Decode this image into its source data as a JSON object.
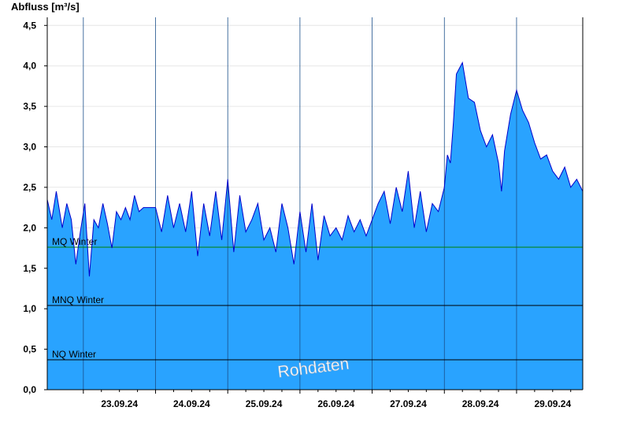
{
  "chart_data": {
    "type": "area",
    "title": "Abfluss [m³/s]",
    "xlabel": "",
    "ylabel": "Abfluss [m³/s]",
    "ylim": [
      0,
      4.6
    ],
    "yticks": [
      {
        "v": 0,
        "label": "0,0"
      },
      {
        "v": 0.5,
        "label": "0,5"
      },
      {
        "v": 1,
        "label": "1,0"
      },
      {
        "v": 1.5,
        "label": "1,5"
      },
      {
        "v": 2,
        "label": "2,0"
      },
      {
        "v": 2.5,
        "label": "2,5"
      },
      {
        "v": 3,
        "label": "3,0"
      },
      {
        "v": 3.5,
        "label": "3,5"
      },
      {
        "v": 4,
        "label": "4,0"
      },
      {
        "v": 4.5,
        "label": "4,5"
      }
    ],
    "xlim": [
      "2024-09-22T12:00",
      "2024-09-29T22:00"
    ],
    "day_ticks": [
      {
        "date": "2024-09-23T00:00",
        "label": "23.09.24"
      },
      {
        "date": "2024-09-24T00:00",
        "label": "24.09.24"
      },
      {
        "date": "2024-09-25T00:00",
        "label": "25.09.24"
      },
      {
        "date": "2024-09-26T00:00",
        "label": "26.09.24"
      },
      {
        "date": "2024-09-27T00:00",
        "label": "27.09.24"
      },
      {
        "date": "2024-09-28T00:00",
        "label": "28.09.24"
      },
      {
        "date": "2024-09-29T00:00",
        "label": "29.09.24"
      }
    ],
    "grid": true,
    "colors": {
      "fill": "#29a3ff",
      "line": "#0000cc",
      "mq": "#008000",
      "ref": "#000000"
    },
    "reference_lines": [
      {
        "label": "MQ Winter",
        "value": 1.76,
        "color": "#008000"
      },
      {
        "label": "MNQ Winter",
        "value": 1.04,
        "color": "#000000"
      },
      {
        "label": "NQ Winter",
        "value": 0.37,
        "color": "#000000"
      }
    ],
    "watermark": "Rohdaten",
    "series": [
      {
        "x": [
          "2024-09-22T12:00",
          "2024-09-22T13:30",
          "2024-09-22T15:00",
          "2024-09-22T17:00",
          "2024-09-22T18:30",
          "2024-09-22T20:00",
          "2024-09-22T21:30",
          "2024-09-22T23:00",
          "2024-09-23T00:30",
          "2024-09-23T02:00",
          "2024-09-23T03:30",
          "2024-09-23T05:00",
          "2024-09-23T06:30",
          "2024-09-23T08:00",
          "2024-09-23T09:30",
          "2024-09-23T11:00",
          "2024-09-23T12:30",
          "2024-09-23T14:00",
          "2024-09-23T15:30",
          "2024-09-23T17:00",
          "2024-09-23T18:30",
          "2024-09-23T20:00",
          "2024-09-23T22:00",
          "2024-09-24T00:00",
          "2024-09-24T02:00",
          "2024-09-24T04:00",
          "2024-09-24T06:00",
          "2024-09-24T08:00",
          "2024-09-24T10:00",
          "2024-09-24T12:00",
          "2024-09-24T14:00",
          "2024-09-24T16:00",
          "2024-09-24T18:00",
          "2024-09-24T20:00",
          "2024-09-24T22:00",
          "2024-09-25T00:00",
          "2024-09-25T02:00",
          "2024-09-25T04:00",
          "2024-09-25T06:00",
          "2024-09-25T08:00",
          "2024-09-25T10:00",
          "2024-09-25T12:00",
          "2024-09-25T14:00",
          "2024-09-25T16:00",
          "2024-09-25T18:00",
          "2024-09-25T20:00",
          "2024-09-25T22:00",
          "2024-09-26T00:00",
          "2024-09-26T02:00",
          "2024-09-26T04:00",
          "2024-09-26T06:00",
          "2024-09-26T08:00",
          "2024-09-26T10:00",
          "2024-09-26T12:00",
          "2024-09-26T14:00",
          "2024-09-26T16:00",
          "2024-09-26T18:00",
          "2024-09-26T20:00",
          "2024-09-26T22:00",
          "2024-09-27T00:00",
          "2024-09-27T02:00",
          "2024-09-27T04:00",
          "2024-09-27T06:00",
          "2024-09-27T08:00",
          "2024-09-27T10:00",
          "2024-09-27T12:00",
          "2024-09-27T14:00",
          "2024-09-27T16:00",
          "2024-09-27T18:00",
          "2024-09-27T20:00",
          "2024-09-27T22:00",
          "2024-09-28T00:00",
          "2024-09-28T01:00",
          "2024-09-28T02:00",
          "2024-09-28T03:00",
          "2024-09-28T04:00",
          "2024-09-28T06:00",
          "2024-09-28T08:00",
          "2024-09-28T10:00",
          "2024-09-28T12:00",
          "2024-09-28T13:00",
          "2024-09-28T14:00",
          "2024-09-28T16:00",
          "2024-09-28T18:00",
          "2024-09-28T19:00",
          "2024-09-28T20:00",
          "2024-09-28T22:00",
          "2024-09-29T00:00",
          "2024-09-29T02:00",
          "2024-09-29T04:00",
          "2024-09-29T06:00",
          "2024-09-29T08:00",
          "2024-09-29T10:00",
          "2024-09-29T12:00",
          "2024-09-29T14:00",
          "2024-09-29T16:00",
          "2024-09-29T18:00",
          "2024-09-29T20:00",
          "2024-09-29T22:00"
        ],
        "y": [
          2.35,
          2.1,
          2.45,
          2.0,
          2.3,
          2.1,
          1.55,
          1.95,
          2.3,
          1.4,
          2.1,
          2.0,
          2.3,
          2.05,
          1.75,
          2.2,
          2.1,
          2.25,
          2.1,
          2.4,
          2.2,
          2.25,
          2.25,
          2.25,
          1.95,
          2.4,
          2.0,
          2.3,
          1.95,
          2.45,
          1.65,
          2.3,
          1.9,
          2.45,
          1.85,
          2.6,
          1.7,
          2.4,
          1.95,
          2.1,
          2.3,
          1.85,
          2.0,
          1.7,
          2.3,
          2.0,
          1.55,
          2.2,
          1.7,
          2.3,
          1.6,
          2.15,
          1.9,
          2.0,
          1.85,
          2.15,
          1.95,
          2.1,
          1.9,
          2.1,
          2.3,
          2.45,
          2.05,
          2.5,
          2.2,
          2.7,
          2.0,
          2.45,
          1.95,
          2.3,
          2.2,
          2.5,
          2.9,
          2.8,
          3.3,
          3.9,
          4.04,
          3.6,
          3.55,
          3.2,
          3.1,
          3.0,
          3.15,
          2.8,
          2.45,
          2.95,
          3.4,
          3.7,
          3.45,
          3.3,
          3.05,
          2.85,
          2.9,
          2.7,
          2.6,
          2.75,
          2.5,
          2.6,
          2.45
        ]
      }
    ]
  }
}
